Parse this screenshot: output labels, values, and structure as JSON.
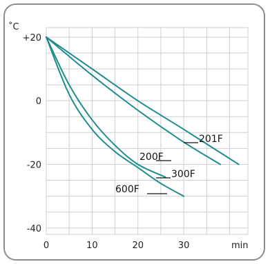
{
  "chart_data": {
    "type": "line",
    "xlabel": "min",
    "ylabel": "˚C",
    "xlim": [
      0,
      44
    ],
    "ylim": [
      -42,
      23
    ],
    "x_ticks": [
      0,
      10,
      20,
      30
    ],
    "y_ticks": [
      {
        "value": 20,
        "label": "+20"
      },
      {
        "value": 0,
        "label": "0"
      },
      {
        "value": -20,
        "label": "-20"
      },
      {
        "value": -40,
        "label": "-40"
      }
    ],
    "grid": true,
    "line_color": "#1e8c8c",
    "series": [
      {
        "name": "201F",
        "x": [
          0,
          10,
          20,
          30,
          42
        ],
        "y": [
          20,
          10,
          0,
          -9,
          -20
        ]
      },
      {
        "name": "200F",
        "x": [
          0,
          10,
          20,
          30,
          38
        ],
        "y": [
          20,
          8,
          -3,
          -13,
          -20
        ]
      },
      {
        "name": "300F",
        "x": [
          0,
          5,
          10,
          15,
          20,
          26
        ],
        "y": [
          20,
          5,
          -6,
          -14,
          -20,
          -24
        ]
      },
      {
        "name": "600F",
        "x": [
          0,
          5,
          10,
          15,
          20,
          25,
          30
        ],
        "y": [
          20,
          2,
          -9,
          -16,
          -21,
          -26,
          -30
        ]
      }
    ]
  }
}
